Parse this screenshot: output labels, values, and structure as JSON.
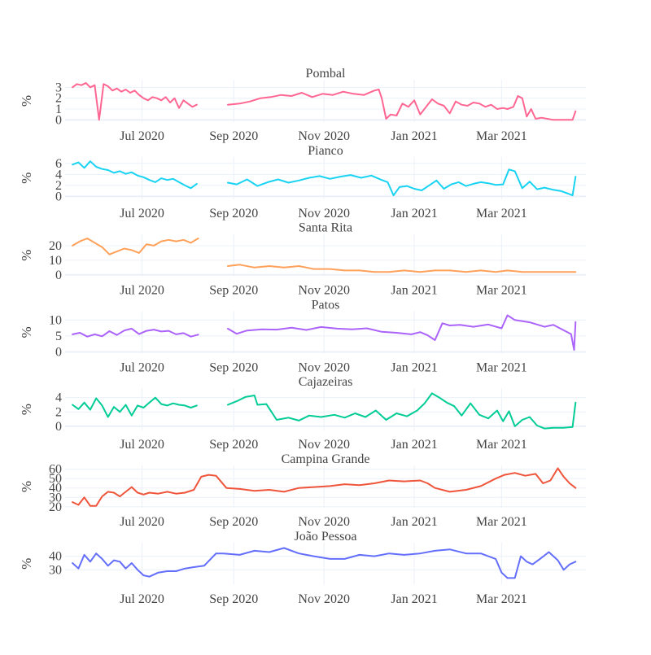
{
  "chart_data": [
    {
      "type": "line",
      "title": "Pombal",
      "ylabel": "%",
      "color": "#ff6692",
      "x_ticks": [
        "Jul 2020",
        "Sep 2020",
        "Nov 2020",
        "Jan 2021",
        "Mar 2021"
      ],
      "y_ticks": [
        0,
        1,
        2,
        3
      ],
      "ylim": [
        -0.2,
        3.7
      ],
      "grid": true,
      "x": [
        "2020-05-15",
        "2020-05-18",
        "2020-05-21",
        "2020-05-24",
        "2020-05-27",
        "2020-05-30",
        "2020-06-02",
        "2020-06-05",
        "2020-06-08",
        "2020-06-11",
        "2020-06-14",
        "2020-06-17",
        "2020-06-20",
        "2020-06-23",
        "2020-06-26",
        "2020-06-29",
        "2020-07-02",
        "2020-07-05",
        "2020-07-08",
        "2020-07-11",
        "2020-07-14",
        "2020-07-17",
        "2020-07-20",
        "2020-07-23",
        "2020-07-26",
        "2020-07-29",
        "2020-08-01",
        "2020-08-04",
        "2020-08-07",
        null,
        "2020-08-28",
        "2020-09-05",
        "2020-09-12",
        "2020-09-19",
        "2020-09-26",
        "2020-10-03",
        "2020-10-10",
        "2020-10-17",
        "2020-10-24",
        "2020-10-31",
        "2020-11-07",
        "2020-11-14",
        "2020-11-21",
        "2020-11-28",
        "2020-12-05",
        "2020-12-08",
        "2020-12-10",
        "2020-12-13",
        "2020-12-16",
        "2020-12-20",
        "2020-12-24",
        "2020-12-28",
        "2021-01-01",
        "2021-01-05",
        "2021-01-09",
        "2021-01-13",
        "2021-01-17",
        "2021-01-21",
        "2021-01-25",
        "2021-01-29",
        "2021-02-02",
        "2021-02-06",
        "2021-02-10",
        "2021-02-14",
        "2021-02-18",
        "2021-02-22",
        "2021-02-26",
        "2021-03-02",
        "2021-03-05",
        "2021-03-09",
        "2021-03-12",
        "2021-03-15",
        "2021-03-18",
        "2021-03-21",
        "2021-03-24",
        "2021-03-28",
        "2021-04-05",
        "2021-04-12",
        "2021-04-18",
        "2021-04-20"
      ],
      "y": [
        3.0,
        3.3,
        3.2,
        3.4,
        3.0,
        3.2,
        0.0,
        3.3,
        3.1,
        2.7,
        2.9,
        2.6,
        2.8,
        2.5,
        2.7,
        2.3,
        2.0,
        1.8,
        2.1,
        2.0,
        1.8,
        2.1,
        1.6,
        2.0,
        1.1,
        1.8,
        1.5,
        1.2,
        1.4,
        null,
        1.4,
        1.5,
        1.7,
        2.0,
        2.1,
        2.3,
        2.2,
        2.5,
        2.1,
        2.4,
        2.3,
        2.6,
        2.4,
        2.3,
        2.7,
        2.8,
        2.0,
        0.1,
        0.5,
        0.4,
        1.5,
        1.2,
        1.8,
        0.5,
        1.2,
        1.9,
        1.5,
        1.3,
        0.6,
        1.7,
        1.4,
        1.3,
        1.6,
        1.5,
        1.2,
        1.4,
        1.0,
        1.1,
        1.0,
        1.2,
        2.2,
        2.0,
        0.3,
        1.0,
        0.1,
        0.2,
        0.0,
        0.0,
        0.0,
        0.8
      ]
    },
    {
      "type": "line",
      "title": "Pianco",
      "ylabel": "%",
      "color": "#19d3f3",
      "x_ticks": [
        "Jul 2020",
        "Sep 2020",
        "Nov 2020",
        "Jan 2021",
        "Mar 2021"
      ],
      "y_ticks": [
        0,
        2,
        4,
        6
      ],
      "ylim": [
        -0.5,
        7.2
      ],
      "grid": true,
      "x": [
        "2020-05-15",
        "2020-05-19",
        "2020-05-23",
        "2020-05-27",
        "2020-05-31",
        "2020-06-04",
        "2020-06-08",
        "2020-06-12",
        "2020-06-16",
        "2020-06-20",
        "2020-06-24",
        "2020-06-28",
        "2020-07-02",
        "2020-07-06",
        "2020-07-10",
        "2020-07-14",
        "2020-07-18",
        "2020-07-22",
        "2020-07-26",
        "2020-07-30",
        "2020-08-03",
        "2020-08-07",
        null,
        "2020-08-28",
        "2020-09-03",
        "2020-09-10",
        "2020-09-17",
        "2020-09-24",
        "2020-10-01",
        "2020-10-08",
        "2020-10-15",
        "2020-10-22",
        "2020-10-29",
        "2020-11-05",
        "2020-11-12",
        "2020-11-19",
        "2020-11-26",
        "2020-12-03",
        "2020-12-10",
        "2020-12-14",
        "2020-12-18",
        "2020-12-22",
        "2020-12-27",
        "2021-01-01",
        "2021-01-06",
        "2021-01-11",
        "2021-01-16",
        "2021-01-21",
        "2021-01-26",
        "2021-01-31",
        "2021-02-05",
        "2021-02-10",
        "2021-02-15",
        "2021-02-20",
        "2021-02-25",
        "2021-03-02",
        "2021-03-06",
        "2021-03-10",
        "2021-03-15",
        "2021-03-20",
        "2021-03-25",
        "2021-03-30",
        "2021-04-05",
        "2021-04-10",
        "2021-04-15",
        "2021-04-18",
        "2021-04-20"
      ],
      "y": [
        5.8,
        6.2,
        5.2,
        6.4,
        5.4,
        5.0,
        4.8,
        4.3,
        4.6,
        4.1,
        4.4,
        3.8,
        3.5,
        3.0,
        2.6,
        3.3,
        3.0,
        3.2,
        2.6,
        2.0,
        1.5,
        2.3,
        null,
        2.5,
        2.2,
        3.1,
        1.9,
        2.6,
        3.1,
        2.5,
        2.9,
        3.4,
        3.7,
        3.2,
        3.6,
        3.9,
        3.4,
        3.8,
        3.0,
        2.6,
        0.2,
        1.7,
        1.9,
        1.4,
        1.1,
        2.0,
        2.9,
        1.4,
        2.2,
        2.6,
        1.9,
        2.3,
        2.6,
        2.4,
        2.1,
        2.2,
        4.9,
        4.6,
        1.5,
        2.7,
        1.3,
        1.6,
        1.2,
        1.0,
        0.5,
        0.2,
        3.6
      ]
    },
    {
      "type": "line",
      "title": "Santa Rita",
      "ylabel": "%",
      "color": "#ffa15a",
      "x_ticks": [
        "Jul 2020",
        "Sep 2020",
        "Nov 2020",
        "Jan 2021",
        "Mar 2021"
      ],
      "y_ticks": [
        0,
        10,
        20
      ],
      "ylim": [
        -1,
        28
      ],
      "grid": true,
      "x": [
        "2020-05-15",
        "2020-05-20",
        "2020-05-25",
        "2020-05-30",
        "2020-06-04",
        "2020-06-09",
        "2020-06-14",
        "2020-06-19",
        "2020-06-24",
        "2020-06-29",
        "2020-07-04",
        "2020-07-09",
        "2020-07-14",
        "2020-07-19",
        "2020-07-24",
        "2020-07-29",
        "2020-08-03",
        "2020-08-08",
        null,
        "2020-08-28",
        "2020-09-05",
        "2020-09-15",
        "2020-09-25",
        "2020-10-05",
        "2020-10-15",
        "2020-10-25",
        "2020-11-05",
        "2020-11-15",
        "2020-11-25",
        "2020-12-05",
        "2020-12-15",
        "2020-12-25",
        "2021-01-05",
        "2021-01-15",
        "2021-01-25",
        "2021-02-05",
        "2021-02-15",
        "2021-02-25",
        "2021-03-05",
        "2021-03-15",
        "2021-03-25",
        "2021-04-05",
        "2021-04-20"
      ],
      "y": [
        20,
        23,
        25,
        22,
        19,
        14,
        16,
        18,
        17,
        15,
        21,
        20,
        23,
        24,
        23,
        24,
        22,
        25,
        null,
        6,
        7,
        5,
        6,
        5,
        6,
        4,
        4,
        3,
        3,
        2,
        2,
        3,
        2,
        3,
        3,
        2,
        3,
        2,
        3,
        2,
        2,
        2,
        2
      ]
    },
    {
      "type": "line",
      "title": "Patos",
      "ylabel": "%",
      "color": "#ab63fa",
      "x_ticks": [
        "Jul 2020",
        "Sep 2020",
        "Nov 2020",
        "Jan 2021",
        "Mar 2021"
      ],
      "y_ticks": [
        0,
        5,
        10
      ],
      "ylim": [
        -0.5,
        12.8
      ],
      "grid": true,
      "x": [
        "2020-05-15",
        "2020-05-20",
        "2020-05-25",
        "2020-05-30",
        "2020-06-04",
        "2020-06-09",
        "2020-06-14",
        "2020-06-19",
        "2020-06-24",
        "2020-06-29",
        "2020-07-04",
        "2020-07-09",
        "2020-07-14",
        "2020-07-19",
        "2020-07-24",
        "2020-07-29",
        "2020-08-03",
        "2020-08-08",
        null,
        "2020-08-28",
        "2020-09-03",
        "2020-09-10",
        "2020-09-20",
        "2020-09-30",
        "2020-10-10",
        "2020-10-20",
        "2020-10-30",
        "2020-11-10",
        "2020-11-20",
        "2020-11-30",
        "2020-12-10",
        "2020-12-20",
        "2020-12-30",
        "2021-01-05",
        "2021-01-10",
        "2021-01-15",
        "2021-01-20",
        "2021-01-25",
        "2021-02-01",
        "2021-02-10",
        "2021-02-20",
        "2021-03-01",
        "2021-03-05",
        "2021-03-10",
        "2021-03-20",
        "2021-03-30",
        "2021-04-05",
        "2021-04-12",
        "2021-04-17",
        "2021-04-19",
        "2021-04-20"
      ],
      "y": [
        5.5,
        6.0,
        4.8,
        5.5,
        4.9,
        6.5,
        5.3,
        6.7,
        7.3,
        5.6,
        6.6,
        7.0,
        6.4,
        6.6,
        5.5,
        5.9,
        4.8,
        5.4,
        null,
        7.3,
        5.7,
        6.7,
        7.1,
        7.0,
        7.6,
        6.9,
        7.8,
        7.3,
        7.1,
        7.4,
        6.3,
        6.0,
        5.5,
        6.2,
        5.2,
        3.7,
        9.0,
        8.3,
        8.5,
        7.9,
        8.6,
        7.4,
        11.5,
        10.0,
        9.3,
        7.9,
        8.5,
        6.8,
        5.6,
        0.6,
        9.4
      ]
    },
    {
      "type": "line",
      "title": "Cajazeiras",
      "ylabel": "%",
      "color": "#00cc96",
      "x_ticks": [
        "Jul 2020",
        "Sep 2020",
        "Nov 2020",
        "Jan 2021",
        "Mar 2021"
      ],
      "y_ticks": [
        0,
        2,
        4
      ],
      "ylim": [
        -0.6,
        5.3
      ],
      "grid": true,
      "x": [
        "2020-05-15",
        "2020-05-19",
        "2020-05-23",
        "2020-05-27",
        "2020-05-31",
        "2020-06-04",
        "2020-06-08",
        "2020-06-12",
        "2020-06-16",
        "2020-06-20",
        "2020-06-24",
        "2020-06-28",
        "2020-07-02",
        "2020-07-06",
        "2020-07-10",
        "2020-07-14",
        "2020-07-18",
        "2020-07-22",
        "2020-07-26",
        "2020-07-30",
        "2020-08-03",
        "2020-08-07",
        null,
        "2020-08-28",
        "2020-09-03",
        "2020-09-09",
        "2020-09-15",
        "2020-09-17",
        "2020-09-23",
        "2020-09-30",
        "2020-10-08",
        "2020-10-15",
        "2020-10-22",
        "2020-10-30",
        "2020-11-08",
        "2020-11-15",
        "2020-11-22",
        "2020-11-29",
        "2020-12-06",
        "2020-12-13",
        "2020-12-20",
        "2020-12-27",
        "2021-01-03",
        "2021-01-08",
        "2021-01-13",
        "2021-01-18",
        "2021-01-23",
        "2021-01-28",
        "2021-02-02",
        "2021-02-08",
        "2021-02-14",
        "2021-02-20",
        "2021-02-26",
        "2021-03-02",
        "2021-03-06",
        "2021-03-10",
        "2021-03-15",
        "2021-03-20",
        "2021-03-25",
        "2021-03-30",
        "2021-04-05",
        "2021-04-12",
        "2021-04-18",
        "2021-04-20"
      ],
      "y": [
        3.0,
        2.4,
        3.3,
        2.3,
        3.9,
        2.9,
        1.3,
        2.7,
        2.0,
        3.0,
        1.5,
        2.9,
        2.6,
        3.3,
        4.0,
        3.1,
        2.9,
        3.2,
        3.0,
        2.9,
        2.6,
        2.9,
        null,
        3.0,
        3.5,
        4.1,
        4.3,
        3.0,
        3.1,
        0.9,
        1.2,
        0.8,
        1.5,
        1.3,
        1.6,
        1.2,
        1.8,
        1.3,
        2.2,
        0.9,
        1.8,
        1.4,
        2.2,
        3.2,
        4.6,
        4.0,
        3.3,
        2.8,
        1.5,
        3.2,
        1.6,
        1.1,
        2.2,
        0.7,
        2.1,
        0.0,
        0.9,
        1.3,
        0.1,
        -0.3,
        -0.2,
        -0.2,
        -0.1,
        3.3
      ]
    },
    {
      "type": "line",
      "title": "Campina Grande",
      "ylabel": "%",
      "color": "#ef553b",
      "x_ticks": [
        "Jul 2020",
        "Sep 2020",
        "Nov 2020",
        "Jan 2021",
        "Mar 2021"
      ],
      "y_ticks": [
        20,
        30,
        40,
        50,
        60
      ],
      "ylim": [
        19,
        64
      ],
      "grid": true,
      "x": [
        "2020-05-15",
        "2020-05-19",
        "2020-05-23",
        "2020-05-27",
        "2020-05-31",
        "2020-06-04",
        "2020-06-08",
        "2020-06-12",
        "2020-06-16",
        "2020-06-20",
        "2020-06-24",
        "2020-06-28",
        "2020-07-02",
        "2020-07-06",
        "2020-07-12",
        "2020-07-18",
        "2020-07-24",
        "2020-07-30",
        "2020-08-05",
        "2020-08-10",
        "2020-08-15",
        "2020-08-20",
        "2020-08-27",
        "2020-09-05",
        "2020-09-15",
        "2020-09-25",
        "2020-10-05",
        "2020-10-15",
        "2020-10-25",
        "2020-11-05",
        "2020-11-15",
        "2020-11-25",
        "2020-12-05",
        "2020-12-15",
        "2020-12-25",
        "2021-01-05",
        "2021-01-10",
        "2021-01-15",
        "2021-01-25",
        "2021-02-05",
        "2021-02-15",
        "2021-02-25",
        "2021-03-03",
        "2021-03-10",
        "2021-03-17",
        "2021-03-24",
        "2021-03-29",
        "2021-04-03",
        "2021-04-08",
        "2021-04-12",
        "2021-04-16",
        "2021-04-20"
      ],
      "y": [
        25,
        22,
        30,
        21,
        21,
        31,
        36,
        35,
        31,
        36,
        41,
        35,
        33,
        35,
        34,
        36,
        34,
        35,
        38,
        52,
        54,
        53,
        40,
        39,
        37,
        38,
        36,
        40,
        41,
        42,
        44,
        43,
        45,
        48,
        47,
        48,
        45,
        40,
        36,
        38,
        42,
        50,
        54,
        56,
        53,
        55,
        45,
        48,
        61,
        52,
        45,
        40
      ]
    },
    {
      "type": "line",
      "title": "João Pessoa",
      "ylabel": "%",
      "color": "#636efa",
      "x_ticks": [
        "Jul 2020",
        "Sep 2020",
        "Nov 2020",
        "Jan 2021",
        "Mar 2021"
      ],
      "y_ticks": [
        30,
        40
      ],
      "ylim": [
        19,
        50
      ],
      "grid": true,
      "x": [
        "2020-05-15",
        "2020-05-19",
        "2020-05-23",
        "2020-05-27",
        "2020-05-31",
        "2020-06-04",
        "2020-06-08",
        "2020-06-12",
        "2020-06-16",
        "2020-06-20",
        "2020-06-24",
        "2020-06-28",
        "2020-07-02",
        "2020-07-06",
        "2020-07-12",
        "2020-07-18",
        "2020-07-24",
        "2020-07-30",
        "2020-08-05",
        "2020-08-12",
        "2020-08-20",
        "2020-08-25",
        "2020-09-05",
        "2020-09-15",
        "2020-09-25",
        "2020-10-05",
        "2020-10-15",
        "2020-10-25",
        "2020-11-05",
        "2020-11-15",
        "2020-11-25",
        "2020-12-05",
        "2020-12-15",
        "2020-12-25",
        "2021-01-05",
        "2021-01-15",
        "2021-01-25",
        "2021-02-05",
        "2021-02-15",
        "2021-02-25",
        "2021-03-01",
        "2021-03-05",
        "2021-03-10",
        "2021-03-14",
        "2021-03-18",
        "2021-03-22",
        "2021-03-27",
        "2021-04-02",
        "2021-04-08",
        "2021-04-12",
        "2021-04-16",
        "2021-04-20"
      ],
      "y": [
        35,
        31,
        41,
        36,
        42,
        38,
        33,
        37,
        36,
        31,
        35,
        30,
        26,
        25,
        28,
        29,
        29,
        31,
        32,
        33,
        42,
        42,
        41,
        44,
        43,
        46,
        42,
        40,
        38,
        38,
        41,
        40,
        42,
        41,
        42,
        44,
        45,
        42,
        42,
        38,
        28,
        24,
        24,
        40,
        36,
        34,
        38,
        43,
        37,
        30,
        34,
        36
      ]
    }
  ]
}
